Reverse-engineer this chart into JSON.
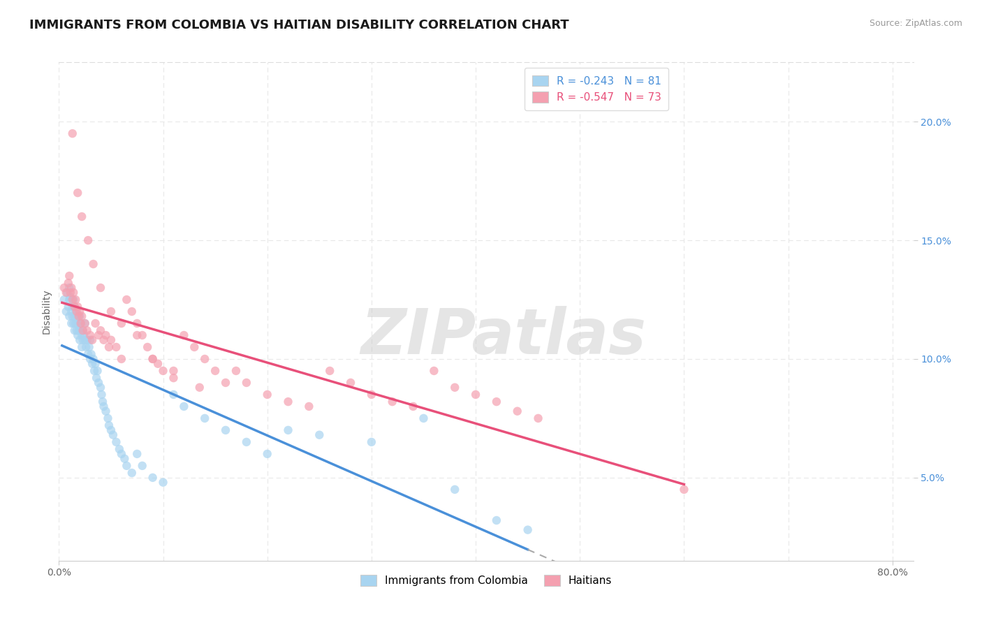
{
  "title": "IMMIGRANTS FROM COLOMBIA VS HAITIAN DISABILITY CORRELATION CHART",
  "source_text": "Source: ZipAtlas.com",
  "ylabel": "Disability",
  "legend_label_1": "Immigrants from Colombia",
  "legend_label_2": "Haitians",
  "r1": -0.243,
  "n1": 81,
  "r2": -0.547,
  "n2": 73,
  "color1": "#A8D4F0",
  "color2": "#F4A0B0",
  "trend1_color": "#4A90D9",
  "trend2_color": "#E8507A",
  "dashed_color": "#AAAAAA",
  "xlim_min": 0.0,
  "xlim_max": 0.82,
  "ylim_min": 0.015,
  "ylim_max": 0.225,
  "ytick_vals": [
    0.05,
    0.1,
    0.15,
    0.2
  ],
  "ytick_labels": [
    "5.0%",
    "10.0%",
    "15.0%",
    "20.0%"
  ],
  "watermark": "ZIPatlas",
  "bg_color": "#FFFFFF",
  "grid_color": "#E8E8E8",
  "colombia_x": [
    0.005,
    0.007,
    0.008,
    0.009,
    0.01,
    0.01,
    0.01,
    0.011,
    0.012,
    0.012,
    0.013,
    0.013,
    0.014,
    0.014,
    0.015,
    0.015,
    0.015,
    0.016,
    0.016,
    0.017,
    0.017,
    0.018,
    0.018,
    0.019,
    0.02,
    0.02,
    0.02,
    0.021,
    0.022,
    0.022,
    0.023,
    0.023,
    0.024,
    0.025,
    0.025,
    0.026,
    0.027,
    0.028,
    0.029,
    0.03,
    0.03,
    0.031,
    0.032,
    0.033,
    0.034,
    0.035,
    0.036,
    0.037,
    0.038,
    0.04,
    0.041,
    0.042,
    0.043,
    0.045,
    0.047,
    0.048,
    0.05,
    0.052,
    0.055,
    0.058,
    0.06,
    0.063,
    0.065,
    0.07,
    0.075,
    0.08,
    0.09,
    0.1,
    0.11,
    0.12,
    0.14,
    0.16,
    0.18,
    0.2,
    0.22,
    0.25,
    0.3,
    0.35,
    0.38,
    0.42,
    0.45
  ],
  "colombia_y": [
    0.125,
    0.12,
    0.128,
    0.122,
    0.13,
    0.125,
    0.118,
    0.126,
    0.12,
    0.115,
    0.122,
    0.118,
    0.125,
    0.115,
    0.122,
    0.118,
    0.112,
    0.12,
    0.115,
    0.118,
    0.112,
    0.115,
    0.11,
    0.112,
    0.118,
    0.112,
    0.108,
    0.115,
    0.11,
    0.105,
    0.112,
    0.108,
    0.11,
    0.115,
    0.108,
    0.105,
    0.108,
    0.102,
    0.105,
    0.108,
    0.1,
    0.102,
    0.098,
    0.1,
    0.095,
    0.098,
    0.092,
    0.095,
    0.09,
    0.088,
    0.085,
    0.082,
    0.08,
    0.078,
    0.075,
    0.072,
    0.07,
    0.068,
    0.065,
    0.062,
    0.06,
    0.058,
    0.055,
    0.052,
    0.06,
    0.055,
    0.05,
    0.048,
    0.085,
    0.08,
    0.075,
    0.07,
    0.065,
    0.06,
    0.07,
    0.068,
    0.065,
    0.075,
    0.045,
    0.032,
    0.028
  ],
  "haitian_x": [
    0.005,
    0.007,
    0.009,
    0.01,
    0.011,
    0.012,
    0.013,
    0.014,
    0.015,
    0.016,
    0.017,
    0.018,
    0.019,
    0.02,
    0.021,
    0.022,
    0.023,
    0.025,
    0.027,
    0.03,
    0.032,
    0.035,
    0.038,
    0.04,
    0.043,
    0.045,
    0.048,
    0.05,
    0.055,
    0.06,
    0.065,
    0.07,
    0.075,
    0.08,
    0.085,
    0.09,
    0.095,
    0.1,
    0.11,
    0.12,
    0.13,
    0.14,
    0.15,
    0.16,
    0.17,
    0.18,
    0.2,
    0.22,
    0.24,
    0.26,
    0.28,
    0.3,
    0.32,
    0.34,
    0.36,
    0.38,
    0.4,
    0.42,
    0.44,
    0.46,
    0.013,
    0.018,
    0.022,
    0.028,
    0.033,
    0.04,
    0.05,
    0.06,
    0.075,
    0.09,
    0.11,
    0.135,
    0.6
  ],
  "haitian_y": [
    0.13,
    0.128,
    0.132,
    0.135,
    0.128,
    0.13,
    0.125,
    0.128,
    0.122,
    0.125,
    0.12,
    0.122,
    0.118,
    0.12,
    0.115,
    0.118,
    0.112,
    0.115,
    0.112,
    0.11,
    0.108,
    0.115,
    0.11,
    0.112,
    0.108,
    0.11,
    0.105,
    0.108,
    0.105,
    0.1,
    0.125,
    0.12,
    0.115,
    0.11,
    0.105,
    0.1,
    0.098,
    0.095,
    0.092,
    0.11,
    0.105,
    0.1,
    0.095,
    0.09,
    0.095,
    0.09,
    0.085,
    0.082,
    0.08,
    0.095,
    0.09,
    0.085,
    0.082,
    0.08,
    0.095,
    0.088,
    0.085,
    0.082,
    0.078,
    0.075,
    0.195,
    0.17,
    0.16,
    0.15,
    0.14,
    0.13,
    0.12,
    0.115,
    0.11,
    0.1,
    0.095,
    0.088,
    0.045
  ]
}
